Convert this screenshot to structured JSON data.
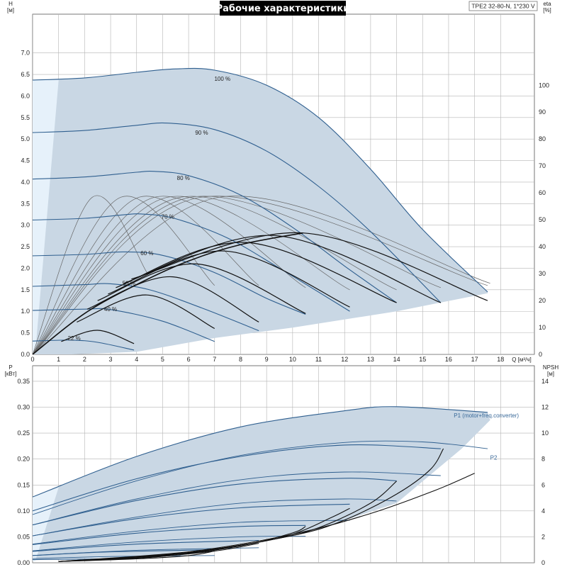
{
  "title": "Рабочие характеристики",
  "model": "TPE2 32-80-N, 1*230 V",
  "colors": {
    "fill": "#c9d7e4",
    "fill_light": "#e6f1fa",
    "speed_curve": "#2f5f8f",
    "eff_curve": "#666666",
    "dark_curve": "#111111",
    "grid": "#b4b4b4"
  },
  "chart_data": [
    {
      "type": "line",
      "name": "top",
      "xlabel": "Q [м³/ч]",
      "ylabel_left": [
        "H",
        "[м]"
      ],
      "ylabel_right": [
        "eta",
        "[%]"
      ],
      "x_ticks": [
        0,
        1,
        2,
        3,
        4,
        5,
        6,
        7,
        8,
        9,
        10,
        11,
        12,
        13,
        14,
        15,
        16,
        17,
        18
      ],
      "y_ticks": [
        "0.0",
        "0.5",
        "1.0",
        "1.5",
        "2.0",
        "2.5",
        "3.0",
        "3.5",
        "4.0",
        "4.5",
        "5.0",
        "5.5",
        "6.0",
        "6.5",
        "7.0"
      ],
      "y2_ticks": [
        "0",
        "10",
        "20",
        "30",
        "40",
        "50",
        "60",
        "70",
        "80",
        "90",
        "100"
      ],
      "xlim": [
        0,
        19.3
      ],
      "ylim": [
        0,
        7.9
      ],
      "y2lim": [
        0,
        126.4
      ],
      "speed_labels": [
        {
          "text": "100 %",
          "x": 7.3,
          "y": 6.4
        },
        {
          "text": "90 %",
          "x": 6.5,
          "y": 5.15
        },
        {
          "text": "80 %",
          "x": 5.8,
          "y": 4.1
        },
        {
          "text": "70 %",
          "x": 5.2,
          "y": 3.2
        },
        {
          "text": "60 %",
          "x": 4.4,
          "y": 2.35
        },
        {
          "text": "50 %",
          "x": 3.7,
          "y": 1.65
        },
        {
          "text": "40 %",
          "x": 3.0,
          "y": 1.05
        },
        {
          "text": "22 %",
          "x": 1.6,
          "y": 0.38
        }
      ],
      "speed_curves": [
        [
          [
            0,
            6.37
          ],
          [
            2,
            6.42
          ],
          [
            4,
            6.55
          ],
          [
            5.5,
            6.63
          ],
          [
            7,
            6.6
          ],
          [
            9,
            6.25
          ],
          [
            11,
            5.5
          ],
          [
            13,
            4.3
          ],
          [
            15,
            2.9
          ],
          [
            17.5,
            1.45
          ]
        ],
        [
          [
            0,
            5.15
          ],
          [
            2,
            5.2
          ],
          [
            4,
            5.32
          ],
          [
            5.2,
            5.37
          ],
          [
            7,
            5.22
          ],
          [
            9,
            4.72
          ],
          [
            11,
            3.9
          ],
          [
            13,
            2.85
          ],
          [
            15.7,
            1.2
          ]
        ],
        [
          [
            0,
            4.07
          ],
          [
            2,
            4.12
          ],
          [
            4,
            4.23
          ],
          [
            4.7,
            4.25
          ],
          [
            6,
            4.15
          ],
          [
            8,
            3.7
          ],
          [
            10,
            2.95
          ],
          [
            12,
            2.05
          ],
          [
            14,
            1.2
          ]
        ],
        [
          [
            0,
            3.12
          ],
          [
            2,
            3.16
          ],
          [
            3.5,
            3.24
          ],
          [
            4.2,
            3.26
          ],
          [
            5.5,
            3.15
          ],
          [
            7.5,
            2.7
          ],
          [
            9.5,
            2.0
          ],
          [
            12.2,
            1.0
          ]
        ],
        [
          [
            0,
            2.29
          ],
          [
            2,
            2.32
          ],
          [
            3.5,
            2.38
          ],
          [
            5,
            2.3
          ],
          [
            7,
            1.9
          ],
          [
            9,
            1.3
          ],
          [
            10.5,
            0.93
          ]
        ],
        [
          [
            0,
            1.58
          ],
          [
            2,
            1.62
          ],
          [
            3,
            1.64
          ],
          [
            4.5,
            1.5
          ],
          [
            6.5,
            1.08
          ],
          [
            8.7,
            0.55
          ]
        ],
        [
          [
            0,
            1.02
          ],
          [
            2,
            1.05
          ],
          [
            3,
            1.04
          ],
          [
            5,
            0.77
          ],
          [
            7,
            0.3
          ]
        ],
        [
          [
            0,
            0.31
          ],
          [
            1.5,
            0.33
          ],
          [
            2.5,
            0.28
          ],
          [
            3.9,
            0.1
          ]
        ]
      ],
      "dark_arcs": [
        [
          [
            1.1,
            0.3
          ],
          [
            2.5,
            0.56
          ],
          [
            3.9,
            0.25
          ]
        ],
        [
          [
            1.7,
            0.75
          ],
          [
            4.4,
            1.38
          ],
          [
            7,
            0.6
          ]
        ],
        [
          [
            2.1,
            1.05
          ],
          [
            5.4,
            1.8
          ],
          [
            8.7,
            0.75
          ]
        ],
        [
          [
            2.5,
            1.25
          ],
          [
            6.3,
            2.1
          ],
          [
            10.5,
            0.95
          ]
        ],
        [
          [
            2.9,
            1.4
          ],
          [
            7.4,
            2.4
          ],
          [
            12.2,
            1.1
          ]
        ],
        [
          [
            3.2,
            1.55
          ],
          [
            8.2,
            2.6
          ],
          [
            14,
            1.2
          ]
        ],
        [
          [
            3.5,
            1.65
          ],
          [
            9.3,
            2.76
          ],
          [
            15.7,
            1.2
          ]
        ],
        [
          [
            3.8,
            1.75
          ],
          [
            10.4,
            2.82
          ],
          [
            17.5,
            1.25
          ]
        ]
      ],
      "bep_line": [
        [
          0,
          0
        ],
        [
          2,
          0.95
        ],
        [
          4,
          1.62
        ],
        [
          6,
          2.17
        ],
        [
          8,
          2.55
        ],
        [
          10.4,
          2.82
        ]
      ],
      "eff_arcs": [
        [
          [
            0,
            0
          ],
          [
            2.3,
            3.65
          ],
          [
            4.4,
            1.9
          ]
        ],
        [
          [
            0,
            0
          ],
          [
            3.4,
            3.65
          ],
          [
            7,
            1.6
          ]
        ],
        [
          [
            0,
            0
          ],
          [
            4.1,
            3.65
          ],
          [
            8.7,
            1.6
          ]
        ],
        [
          [
            0,
            0
          ],
          [
            4.7,
            3.65
          ],
          [
            10.5,
            1.55
          ]
        ],
        [
          [
            0,
            0
          ],
          [
            5.2,
            3.65
          ],
          [
            12.2,
            1.5
          ]
        ],
        [
          [
            0,
            0
          ],
          [
            5.7,
            3.65
          ],
          [
            14,
            1.5
          ]
        ],
        [
          [
            0,
            0
          ],
          [
            6.1,
            3.65
          ],
          [
            15.7,
            1.55
          ]
        ],
        [
          [
            0,
            0
          ],
          [
            6.5,
            3.65
          ],
          [
            17.5,
            1.6
          ]
        ],
        [
          [
            0,
            0
          ],
          [
            7.2,
            3.65
          ],
          [
            17.6,
            1.65
          ]
        ]
      ],
      "area": [
        [
          0,
          6.37
        ],
        [
          2,
          6.42
        ],
        [
          4,
          6.55
        ],
        [
          5.5,
          6.63
        ],
        [
          7,
          6.6
        ],
        [
          9,
          6.25
        ],
        [
          11,
          5.5
        ],
        [
          13,
          4.3
        ],
        [
          15,
          2.9
        ],
        [
          17.5,
          1.45
        ],
        [
          17.5,
          1.42
        ],
        [
          14,
          1.0
        ],
        [
          10,
          0.62
        ],
        [
          7,
          0.38
        ],
        [
          4,
          0.06
        ],
        [
          1.5,
          0
        ],
        [
          0,
          0
        ]
      ],
      "area_light": [
        [
          0,
          6.37
        ],
        [
          1,
          6.37
        ],
        [
          0.1,
          0.02
        ],
        [
          0,
          0
        ]
      ]
    },
    {
      "type": "line",
      "name": "bottom",
      "ylabel_left": [
        "P",
        "[кВт]"
      ],
      "ylabel_right": [
        "NPSH",
        "[м]"
      ],
      "x_ticks": [
        0,
        1,
        2,
        3,
        4,
        5,
        6,
        7,
        8,
        9,
        10,
        11,
        12,
        13,
        14,
        15,
        16,
        17,
        18
      ],
      "y_ticks": [
        "0.00",
        "0.05",
        "0.10",
        "0.15",
        "0.20",
        "0.25",
        "0.30",
        "0.35"
      ],
      "y2_ticks": [
        "0",
        "2",
        "4",
        "6",
        "8",
        "10",
        "12",
        "14"
      ],
      "xlim": [
        0,
        19.3
      ],
      "ylim": [
        0,
        0.38
      ],
      "y2lim": [
        0,
        15.2
      ],
      "p1_label": {
        "text": "P1 (motor+freq.converter)",
        "x": 16.2,
        "y": 0.284
      },
      "p2_label": {
        "text": "P2",
        "x": 17.6,
        "y": 0.203
      },
      "p1_curves": [
        [
          [
            0,
            0.127
          ],
          [
            4,
            0.205
          ],
          [
            8,
            0.262
          ],
          [
            12,
            0.293
          ],
          [
            14,
            0.301
          ],
          [
            17.5,
            0.29
          ]
        ],
        [
          [
            0,
            0.1
          ],
          [
            4,
            0.162
          ],
          [
            8,
            0.205
          ],
          [
            12,
            0.227
          ],
          [
            15.7,
            0.22
          ]
        ],
        [
          [
            0,
            0.073
          ],
          [
            4,
            0.12
          ],
          [
            8,
            0.152
          ],
          [
            12,
            0.163
          ],
          [
            14,
            0.158
          ]
        ],
        [
          [
            0,
            0.052
          ],
          [
            4,
            0.085
          ],
          [
            8,
            0.106
          ],
          [
            12.2,
            0.113
          ]
        ],
        [
          [
            0,
            0.035
          ],
          [
            4,
            0.057
          ],
          [
            8,
            0.07
          ],
          [
            10.5,
            0.072
          ]
        ],
        [
          [
            0,
            0.022
          ],
          [
            4,
            0.036
          ],
          [
            8.7,
            0.043
          ]
        ],
        [
          [
            0,
            0.014
          ],
          [
            3,
            0.021
          ],
          [
            7,
            0.025
          ]
        ],
        [
          [
            0,
            0.006
          ],
          [
            3.9,
            0.008
          ]
        ]
      ],
      "p2_curves": [
        [
          [
            0,
            0.093
          ],
          [
            4,
            0.158
          ],
          [
            8,
            0.207
          ],
          [
            12,
            0.232
          ],
          [
            15,
            0.233
          ],
          [
            17.5,
            0.22
          ]
        ],
        [
          [
            0,
            0.073
          ],
          [
            4,
            0.123
          ],
          [
            8,
            0.16
          ],
          [
            12,
            0.175
          ],
          [
            15.7,
            0.168
          ]
        ],
        [
          [
            0,
            0.052
          ],
          [
            4,
            0.088
          ],
          [
            8,
            0.115
          ],
          [
            12,
            0.123
          ],
          [
            14,
            0.119
          ]
        ],
        [
          [
            0,
            0.036
          ],
          [
            4,
            0.061
          ],
          [
            8,
            0.078
          ],
          [
            12.2,
            0.082
          ]
        ],
        [
          [
            0,
            0.023
          ],
          [
            4,
            0.04
          ],
          [
            8,
            0.05
          ],
          [
            10.5,
            0.051
          ]
        ],
        [
          [
            0,
            0.014
          ],
          [
            4,
            0.024
          ],
          [
            8.7,
            0.029
          ]
        ],
        [
          [
            0,
            0.008
          ],
          [
            3,
            0.012
          ],
          [
            7,
            0.014
          ]
        ]
      ],
      "npsh_curves": [
        [
          [
            1,
            0.1
          ],
          [
            4,
            0.3
          ],
          [
            6,
            0.55
          ],
          [
            7,
            0.9
          ]
        ],
        [
          [
            1,
            0.1
          ],
          [
            4,
            0.35
          ],
          [
            7,
            0.9
          ],
          [
            8.7,
            1.5
          ]
        ],
        [
          [
            1,
            0.1
          ],
          [
            5,
            0.5
          ],
          [
            8,
            1.3
          ],
          [
            10,
            2.3
          ],
          [
            10.5,
            2.8
          ]
        ],
        [
          [
            1,
            0.1
          ],
          [
            5,
            0.55
          ],
          [
            8,
            1.35
          ],
          [
            10,
            2.2
          ],
          [
            11.5,
            3.5
          ],
          [
            12.2,
            4.2
          ]
        ],
        [
          [
            1,
            0.1
          ],
          [
            6,
            0.75
          ],
          [
            9,
            1.7
          ],
          [
            11,
            2.7
          ],
          [
            13,
            4.6
          ],
          [
            14,
            6.3
          ]
        ],
        [
          [
            1,
            0.1
          ],
          [
            6,
            0.8
          ],
          [
            10,
            2.1
          ],
          [
            12,
            3.3
          ],
          [
            14,
            5.3
          ],
          [
            15.3,
            7.2
          ],
          [
            15.8,
            8.8
          ]
        ],
        [
          [
            1,
            0.1
          ],
          [
            6,
            0.85
          ],
          [
            10,
            2.2
          ],
          [
            13,
            3.8
          ],
          [
            15.5,
            5.6
          ],
          [
            17,
            6.9
          ]
        ]
      ],
      "area": [
        [
          0,
          0.127
        ],
        [
          4,
          0.205
        ],
        [
          8,
          0.262
        ],
        [
          12,
          0.293
        ],
        [
          14,
          0.301
        ],
        [
          17.5,
          0.29
        ],
        [
          17.6,
          0.275
        ],
        [
          16.5,
          0.22
        ],
        [
          14,
          0.115
        ],
        [
          11,
          0.065
        ],
        [
          7,
          0.028
        ],
        [
          4,
          0.012
        ],
        [
          0,
          0.005
        ]
      ],
      "area_light": [
        [
          0,
          0.127
        ],
        [
          1,
          0.145
        ],
        [
          0.1,
          0.003
        ],
        [
          0,
          0.003
        ]
      ]
    }
  ]
}
